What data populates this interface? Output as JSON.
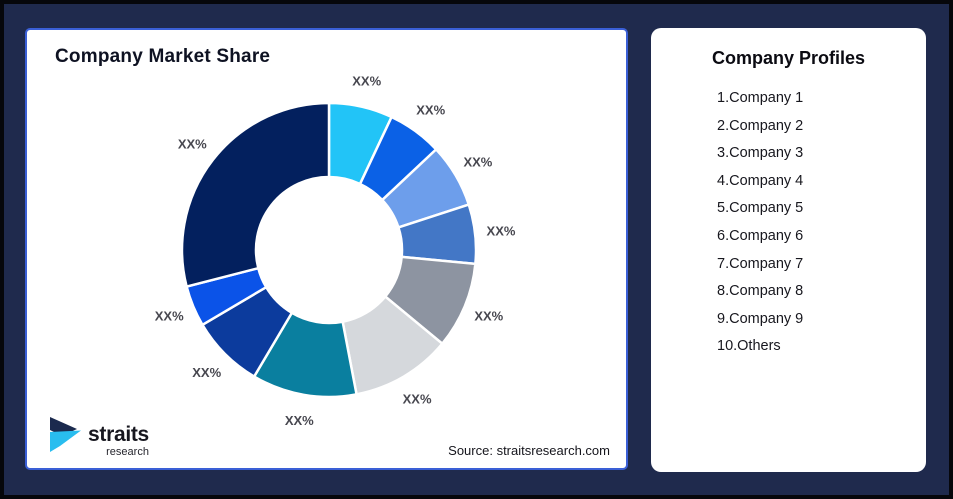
{
  "page": {
    "background_color": "#1F2A4D",
    "frame_color": "#06070B"
  },
  "chart_card": {
    "title": "Company Market Share",
    "source_text": "Source: straitsresearch.com",
    "border_color": "#3A5FD6",
    "logo": {
      "brand": "straits",
      "subtext": "research",
      "navy_color": "#1B2A4E",
      "cyan_color": "#29BDEF"
    }
  },
  "chart_data": {
    "type": "pie",
    "variant": "donut",
    "title": "Company Market Share",
    "legend_position": "none",
    "data_labels": "outside",
    "label_color": "#47474F",
    "separator_color": "#FFFFFF",
    "start_angle_deg": 0,
    "series": [
      {
        "name": "Company 1",
        "label": "XX%",
        "value": 7,
        "color": "#22C4F7"
      },
      {
        "name": "Company 2",
        "label": "XX%",
        "value": 6,
        "color": "#0B61E6"
      },
      {
        "name": "Company 3",
        "label": "XX%",
        "value": 7,
        "color": "#6D9EEB"
      },
      {
        "name": "Company 4",
        "label": "XX%",
        "value": 6.5,
        "color": "#4377C6"
      },
      {
        "name": "Company 5",
        "label": "XX%",
        "value": 9.5,
        "color": "#8D94A1"
      },
      {
        "name": "Company 6",
        "label": "XX%",
        "value": 11,
        "color": "#D5D8DC"
      },
      {
        "name": "Company 7",
        "label": "XX%",
        "value": 11.5,
        "color": "#0A7F9F"
      },
      {
        "name": "Company 8",
        "label": "XX%",
        "value": 8,
        "color": "#0C3B9D"
      },
      {
        "name": "Company 9",
        "label": "XX%",
        "value": 4.5,
        "color": "#0B53E8"
      },
      {
        "name": "Others",
        "label": "XX%",
        "value": 29,
        "color": "#03205E"
      }
    ]
  },
  "profiles_panel": {
    "title": "Company Profiles",
    "items": [
      "1.Company 1",
      "2.Company 2",
      "3.Company 3",
      "4.Company 4",
      "5.Company 5",
      "6.Company 6",
      "7.Company 7",
      "8.Company 8",
      "9.Company 9",
      "10.Others"
    ]
  }
}
